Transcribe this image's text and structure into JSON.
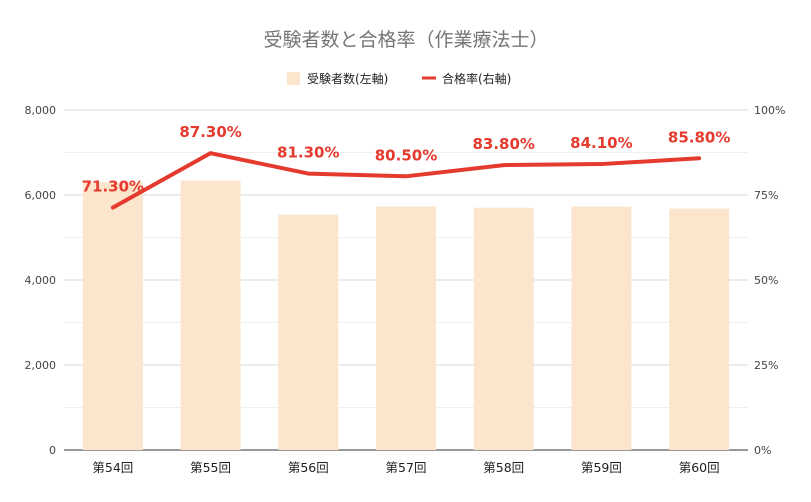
{
  "chart_data": {
    "type": "bar",
    "title": "受験者数と合格率（作業療法士）",
    "categories": [
      "第54回",
      "第55回",
      "第56回",
      "第57回",
      "第58回",
      "第59回",
      "第60回"
    ],
    "series": [
      {
        "name": "受験者数(左軸)",
        "type": "bar",
        "axis": "left",
        "color": "#fce5cd",
        "values": [
          6300,
          6340,
          5540,
          5730,
          5700,
          5730,
          5680
        ]
      },
      {
        "name": "合格率(右軸)",
        "type": "line",
        "axis": "right",
        "color": "#e53a2e",
        "values": [
          71.3,
          87.3,
          81.3,
          80.5,
          83.8,
          84.1,
          85.8
        ],
        "labels": [
          "71.30%",
          "87.30%",
          "81.30%",
          "80.50%",
          "83.80%",
          "84.10%",
          "85.80%"
        ]
      }
    ],
    "y_left": {
      "range": [
        0,
        8000
      ],
      "ticks": [
        0,
        2000,
        4000,
        6000,
        8000
      ],
      "tick_labels": [
        "0",
        "2,000",
        "4,000",
        "6,000",
        "8,000"
      ]
    },
    "y_right": {
      "range": [
        0,
        100
      ],
      "ticks": [
        0,
        25,
        50,
        75,
        100
      ],
      "tick_labels": [
        "0%",
        "25%",
        "50%",
        "75%",
        "100%"
      ]
    },
    "grid": true,
    "legend": "top"
  }
}
